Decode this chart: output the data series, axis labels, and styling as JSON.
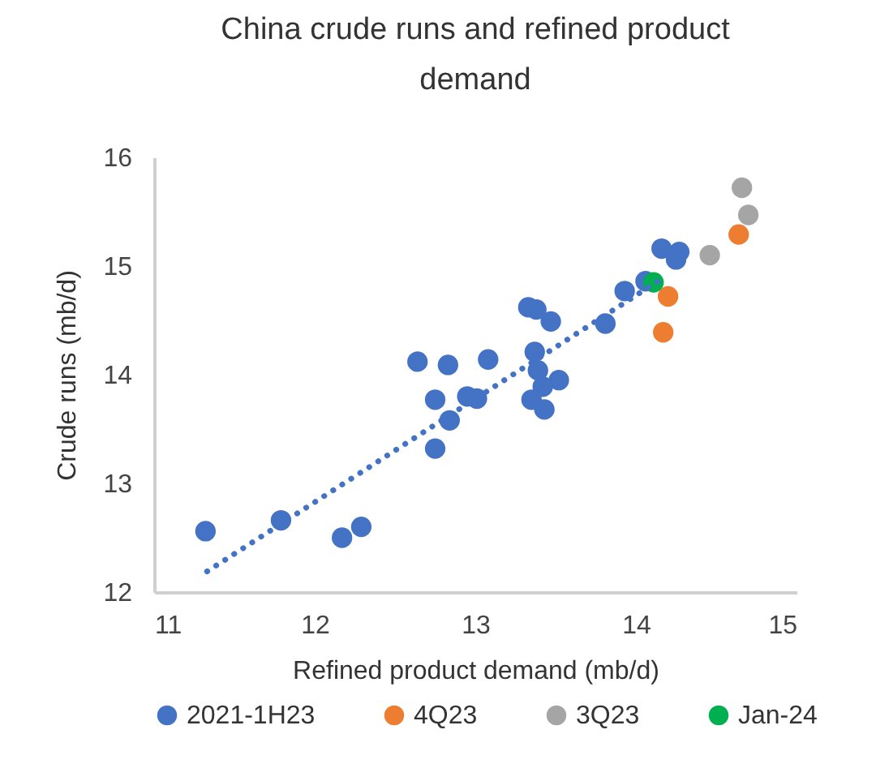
{
  "chart_data": {
    "type": "scatter",
    "title": "China crude runs and refined product demand",
    "xlabel": "Refined product demand (mb/d)",
    "ylabel": "Crude runs (mb/d)",
    "xlim": [
      11,
      15
    ],
    "ylim": [
      12,
      16
    ],
    "xticks": [
      11,
      12,
      13,
      14,
      15
    ],
    "yticks": [
      12,
      13,
      14,
      15,
      16
    ],
    "grid": false,
    "legend": "bottom",
    "marker": "circle",
    "series": [
      {
        "name": "2021-1H23",
        "color": "#4472c4",
        "x": [
          11.32,
          11.79,
          12.17,
          12.29,
          12.64,
          12.83,
          13.08,
          12.75,
          12.84,
          12.75,
          12.95,
          13.01,
          13.33,
          13.38,
          13.47,
          13.37,
          13.39,
          13.52,
          13.42,
          13.35,
          13.43,
          13.81,
          13.93,
          14.06,
          14.16,
          14.27,
          14.25
        ],
        "values": [
          12.56,
          12.66,
          12.5,
          12.6,
          14.12,
          14.09,
          14.14,
          13.77,
          13.58,
          13.32,
          13.8,
          13.78,
          14.62,
          14.6,
          14.49,
          14.21,
          14.04,
          13.95,
          13.89,
          13.77,
          13.68,
          14.47,
          14.77,
          14.86,
          15.16,
          15.13,
          15.06
        ]
      },
      {
        "name": "4Q23",
        "color": "#ed7d31",
        "x": [
          14.2,
          14.17,
          14.64
        ],
        "values": [
          14.72,
          14.39,
          15.29
        ]
      },
      {
        "name": "3Q23",
        "color": "#a5a5a5",
        "x": [
          14.66,
          14.7,
          14.46
        ],
        "values": [
          15.72,
          15.47,
          15.1
        ]
      },
      {
        "name": "Jan-24",
        "color": "#00b050",
        "x": [
          14.11
        ],
        "values": [
          14.85
        ]
      },
      {
        "type": "line",
        "color": "#4472c4",
        "line_style": "dotted",
        "marker": "none",
        "x": [
          11.33,
          14.18
        ],
        "values": [
          12.19,
          14.9
        ]
      }
    ]
  }
}
